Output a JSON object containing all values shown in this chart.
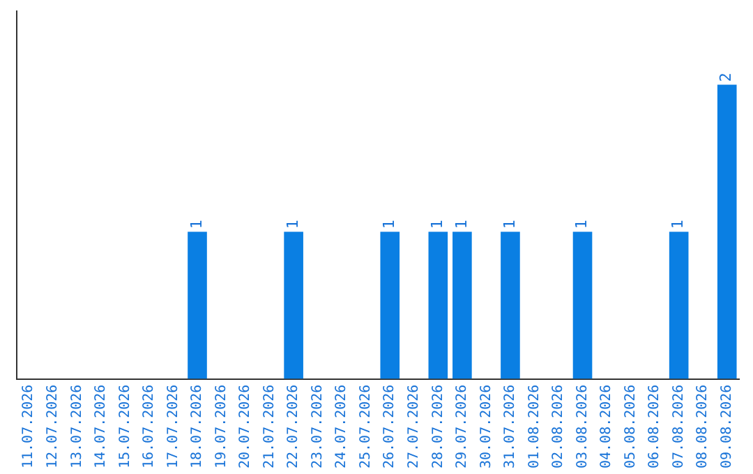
{
  "chart_data": {
    "type": "bar",
    "categories": [
      "11.07.2026",
      "12.07.2026",
      "13.07.2026",
      "14.07.2026",
      "15.07.2026",
      "16.07.2026",
      "17.07.2026",
      "18.07.2026",
      "19.07.2026",
      "20.07.2026",
      "21.07.2026",
      "22.07.2026",
      "23.07.2026",
      "24.07.2026",
      "25.07.2026",
      "26.07.2026",
      "27.07.2026",
      "28.07.2026",
      "29.07.2026",
      "30.07.2026",
      "31.07.2026",
      "01.08.2026",
      "02.08.2026",
      "03.08.2026",
      "04.08.2026",
      "05.08.2026",
      "06.08.2026",
      "07.08.2026",
      "08.08.2026",
      "09.08.2026"
    ],
    "values": [
      0,
      0,
      0,
      0,
      0,
      0,
      0,
      1,
      0,
      0,
      0,
      1,
      0,
      0,
      0,
      1,
      0,
      1,
      1,
      0,
      1,
      0,
      0,
      1,
      0,
      0,
      0,
      1,
      0,
      2
    ],
    "value_labels": [
      null,
      null,
      null,
      null,
      null,
      null,
      null,
      "1",
      null,
      null,
      null,
      "1",
      null,
      null,
      null,
      "1",
      null,
      "1",
      "1",
      null,
      "1",
      null,
      null,
      "1",
      null,
      null,
      null,
      "1",
      null,
      "2"
    ],
    "color": "#0a7fe3",
    "grid": false,
    "legend": false,
    "tick_labels": "x"
  }
}
